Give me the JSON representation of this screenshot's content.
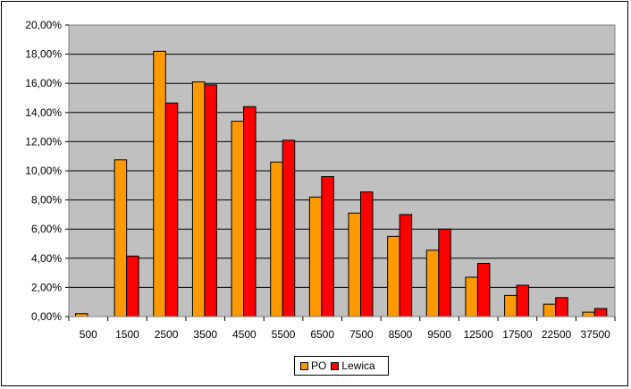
{
  "chart_data": {
    "type": "bar",
    "categories": [
      "500",
      "1500",
      "2500",
      "3500",
      "4500",
      "5500",
      "6500",
      "7500",
      "8500",
      "9500",
      "12500",
      "17500",
      "22500",
      "37500"
    ],
    "series": [
      {
        "name": "PO",
        "color": "#FF9900",
        "values": [
          0.2,
          10.75,
          18.2,
          16.1,
          13.4,
          10.6,
          8.2,
          7.1,
          5.5,
          4.55,
          2.7,
          1.45,
          0.85,
          0.3
        ]
      },
      {
        "name": "Lewica",
        "color": "#FF0000",
        "values": [
          0.0,
          4.15,
          14.65,
          15.9,
          14.4,
          12.1,
          9.6,
          8.55,
          7.0,
          6.0,
          3.65,
          2.15,
          1.3,
          0.55
        ]
      }
    ],
    "yticks": [
      "0,00%",
      "2,00%",
      "4,00%",
      "6,00%",
      "8,00%",
      "10,00%",
      "12,00%",
      "14,00%",
      "16,00%",
      "18,00%",
      "20,00%"
    ],
    "ylim": [
      0,
      20
    ],
    "title": "",
    "xlabel": "",
    "ylabel": "",
    "grid": true,
    "plot_background": "#C0C0C0",
    "legend_position": "bottom"
  }
}
